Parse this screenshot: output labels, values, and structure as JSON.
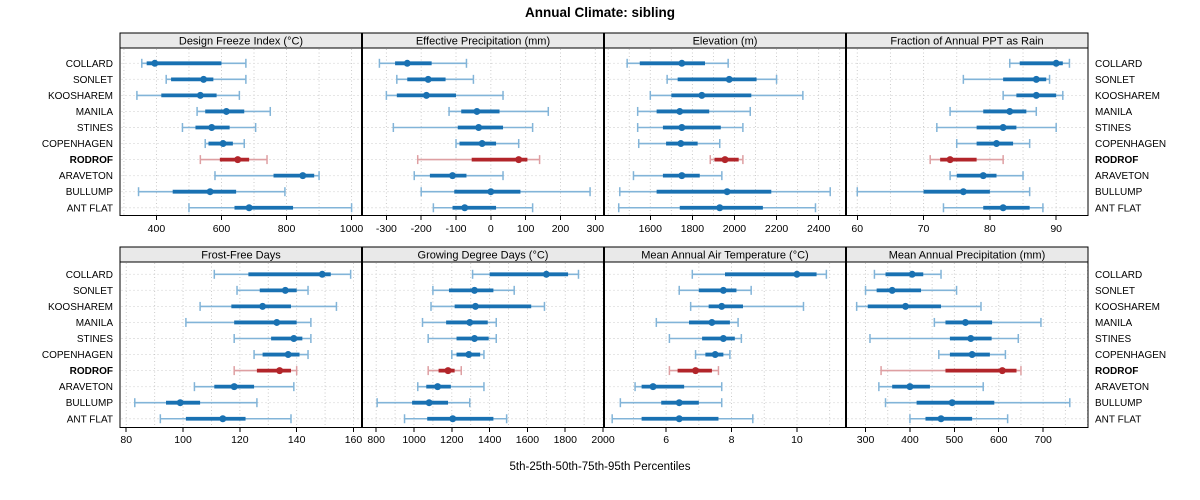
{
  "title": "Annual Climate: sibling",
  "caption": "5th-25th-50th-75th-95th Percentiles",
  "stations": [
    "COLLARD",
    "SONLET",
    "KOOSHAREM",
    "MANILA",
    "STINES",
    "COPENHAGEN",
    "RODROF",
    "ARAVETON",
    "BULLUMP",
    "ANT FLAT"
  ],
  "highlighted_station": "RODROF",
  "colors": {
    "normal_dark": "#1971b2",
    "normal_light": "#82b4d8",
    "highlight_dark": "#b2252a",
    "highlight_light": "#de9fa2",
    "grid": "#c6c6c6",
    "strip_bg": "#e9e9e9",
    "border": "#000000",
    "text": "#000000"
  },
  "chart_data": {
    "type": "trellis-percentile-dotplot",
    "percentiles": [
      5,
      25,
      50,
      75,
      95
    ],
    "grid": true,
    "panels": [
      {
        "title": "Design Freeze Index (°C)",
        "row": 0,
        "col": 0,
        "xdomain": [
          288,
          1032
        ],
        "xticks": [
          400,
          600,
          800,
          1000
        ],
        "grid_step": 100,
        "values": [
          [
            355,
            370,
            395,
            600,
            675
          ],
          [
            430,
            445,
            545,
            575,
            675
          ],
          [
            340,
            415,
            535,
            585,
            655
          ],
          [
            525,
            550,
            615,
            670,
            750
          ],
          [
            480,
            520,
            570,
            625,
            705
          ],
          [
            550,
            560,
            605,
            635,
            670
          ],
          [
            535,
            595,
            650,
            685,
            740
          ],
          [
            580,
            760,
            850,
            885,
            900
          ],
          [
            345,
            450,
            565,
            645,
            795
          ],
          [
            500,
            640,
            685,
            820,
            1000
          ]
        ]
      },
      {
        "title": "Effective Precipitation (mm)",
        "row": 0,
        "col": 1,
        "xdomain": [
          -370,
          325
        ],
        "xticks": [
          -300,
          -200,
          -100,
          0,
          100,
          200,
          300
        ],
        "grid_step": 100,
        "values": [
          [
            -320,
            -275,
            -240,
            -170,
            -70
          ],
          [
            -270,
            -240,
            -180,
            -130,
            -50
          ],
          [
            -300,
            -270,
            -185,
            -100,
            35
          ],
          [
            -120,
            -85,
            -40,
            25,
            165
          ],
          [
            -280,
            -95,
            -35,
            35,
            120
          ],
          [
            -100,
            -90,
            -25,
            15,
            80
          ],
          [
            -210,
            -55,
            80,
            105,
            140
          ],
          [
            -220,
            -175,
            -110,
            -70,
            35
          ],
          [
            -200,
            -105,
            0,
            85,
            285
          ],
          [
            -165,
            -110,
            -75,
            15,
            120
          ]
        ]
      },
      {
        "title": "Elevation (m)",
        "row": 0,
        "col": 2,
        "xdomain": [
          1380,
          2530
        ],
        "xticks": [
          1600,
          1800,
          2000,
          2200,
          2400
        ],
        "grid_step": 100,
        "values": [
          [
            1490,
            1550,
            1750,
            1860,
            1970
          ],
          [
            1680,
            1730,
            1975,
            2105,
            2200
          ],
          [
            1600,
            1700,
            1845,
            2080,
            2325
          ],
          [
            1540,
            1630,
            1740,
            1880,
            2075
          ],
          [
            1540,
            1660,
            1750,
            1935,
            2040
          ],
          [
            1545,
            1675,
            1745,
            1825,
            1930
          ],
          [
            1885,
            1905,
            1955,
            2020,
            2040
          ],
          [
            1520,
            1660,
            1750,
            1835,
            1940
          ],
          [
            1455,
            1630,
            1965,
            2175,
            2455
          ],
          [
            1450,
            1740,
            1930,
            2135,
            2385
          ]
        ]
      },
      {
        "title": "Fraction of Annual PPT as Rain",
        "row": 0,
        "col": 3,
        "xdomain": [
          58.3,
          94.8
        ],
        "xticks": [
          60,
          70,
          80,
          90
        ],
        "grid_step": 5,
        "values": [
          [
            83,
            84.5,
            90,
            91,
            92
          ],
          [
            76,
            82,
            87,
            88.5,
            89
          ],
          [
            82,
            84,
            87,
            90,
            91
          ],
          [
            74,
            79,
            83,
            85.5,
            87
          ],
          [
            72,
            78,
            82,
            84,
            90
          ],
          [
            75,
            78,
            81,
            83.5,
            86
          ],
          [
            71,
            72.5,
            74,
            78,
            82
          ],
          [
            74,
            75,
            79,
            81,
            85
          ],
          [
            60,
            70,
            76,
            80,
            86
          ],
          [
            73,
            79,
            82,
            86,
            88
          ]
        ]
      },
      {
        "title": "Frost-Free Days",
        "row": 1,
        "col": 0,
        "xdomain": [
          77.8,
          163
        ],
        "xticks": [
          80,
          100,
          120,
          140,
          160
        ],
        "grid_step": 10,
        "values": [
          [
            111,
            123,
            149,
            152,
            159
          ],
          [
            119,
            127,
            136,
            140,
            144
          ],
          [
            106,
            117,
            128,
            138,
            154
          ],
          [
            101,
            118,
            133,
            140,
            145
          ],
          [
            118,
            131,
            139,
            142,
            145
          ],
          [
            125,
            128,
            137,
            141,
            144
          ],
          [
            118,
            126,
            134,
            138,
            140
          ],
          [
            104,
            111,
            118,
            125,
            139
          ],
          [
            83,
            94,
            99,
            106,
            126
          ],
          [
            92,
            101,
            114,
            122,
            138
          ]
        ]
      },
      {
        "title": "Growing Degree Days (°C)",
        "row": 1,
        "col": 1,
        "xdomain": [
          725,
          2005
        ],
        "xticks": [
          800,
          1000,
          1200,
          1400,
          1600,
          1800,
          2000
        ],
        "grid_step": 100,
        "values": [
          [
            1310,
            1400,
            1700,
            1815,
            1870
          ],
          [
            1100,
            1185,
            1320,
            1420,
            1530
          ],
          [
            1090,
            1215,
            1325,
            1620,
            1690
          ],
          [
            1045,
            1170,
            1295,
            1390,
            1435
          ],
          [
            1075,
            1225,
            1320,
            1395,
            1435
          ],
          [
            1200,
            1225,
            1290,
            1350,
            1370
          ],
          [
            1075,
            1130,
            1180,
            1215,
            1250
          ],
          [
            1020,
            1065,
            1125,
            1195,
            1370
          ],
          [
            805,
            990,
            1080,
            1180,
            1295
          ],
          [
            950,
            1070,
            1205,
            1420,
            1490
          ]
        ]
      },
      {
        "title": "Mean Annual Air Temperature (°C)",
        "row": 1,
        "col": 2,
        "xdomain": [
          4.1,
          11.5
        ],
        "xticks": [
          6,
          8,
          10
        ],
        "grid_step": 1,
        "values": [
          [
            6.8,
            7.8,
            10.0,
            10.6,
            10.9
          ],
          [
            6.4,
            7.0,
            7.75,
            8.15,
            8.6
          ],
          [
            6.75,
            7.3,
            7.7,
            8.35,
            10.2
          ],
          [
            5.7,
            6.7,
            7.4,
            7.95,
            8.2
          ],
          [
            6.1,
            7.1,
            7.75,
            8.1,
            8.3
          ],
          [
            6.9,
            7.2,
            7.5,
            7.75,
            7.95
          ],
          [
            6.1,
            6.35,
            6.9,
            7.4,
            7.6
          ],
          [
            5.05,
            5.25,
            5.6,
            6.55,
            7.7
          ],
          [
            4.6,
            5.85,
            6.4,
            7.0,
            7.7
          ],
          [
            4.35,
            5.25,
            6.4,
            7.6,
            8.65
          ]
        ]
      },
      {
        "title": "Mean Annual Precipitation (mm)",
        "row": 1,
        "col": 3,
        "xdomain": [
          256,
          801
        ],
        "xticks": [
          300,
          400,
          500,
          600,
          700
        ],
        "grid_step": 50,
        "values": [
          [
            320,
            345,
            405,
            430,
            470
          ],
          [
            300,
            325,
            360,
            425,
            505
          ],
          [
            280,
            305,
            390,
            470,
            560
          ],
          [
            455,
            480,
            525,
            585,
            695
          ],
          [
            310,
            490,
            537,
            584,
            644
          ],
          [
            465,
            490,
            540,
            580,
            615
          ],
          [
            335,
            480,
            608,
            640,
            650
          ],
          [
            330,
            360,
            400,
            445,
            565
          ],
          [
            345,
            415,
            495,
            590,
            760
          ],
          [
            400,
            435,
            470,
            540,
            620
          ]
        ]
      }
    ]
  }
}
